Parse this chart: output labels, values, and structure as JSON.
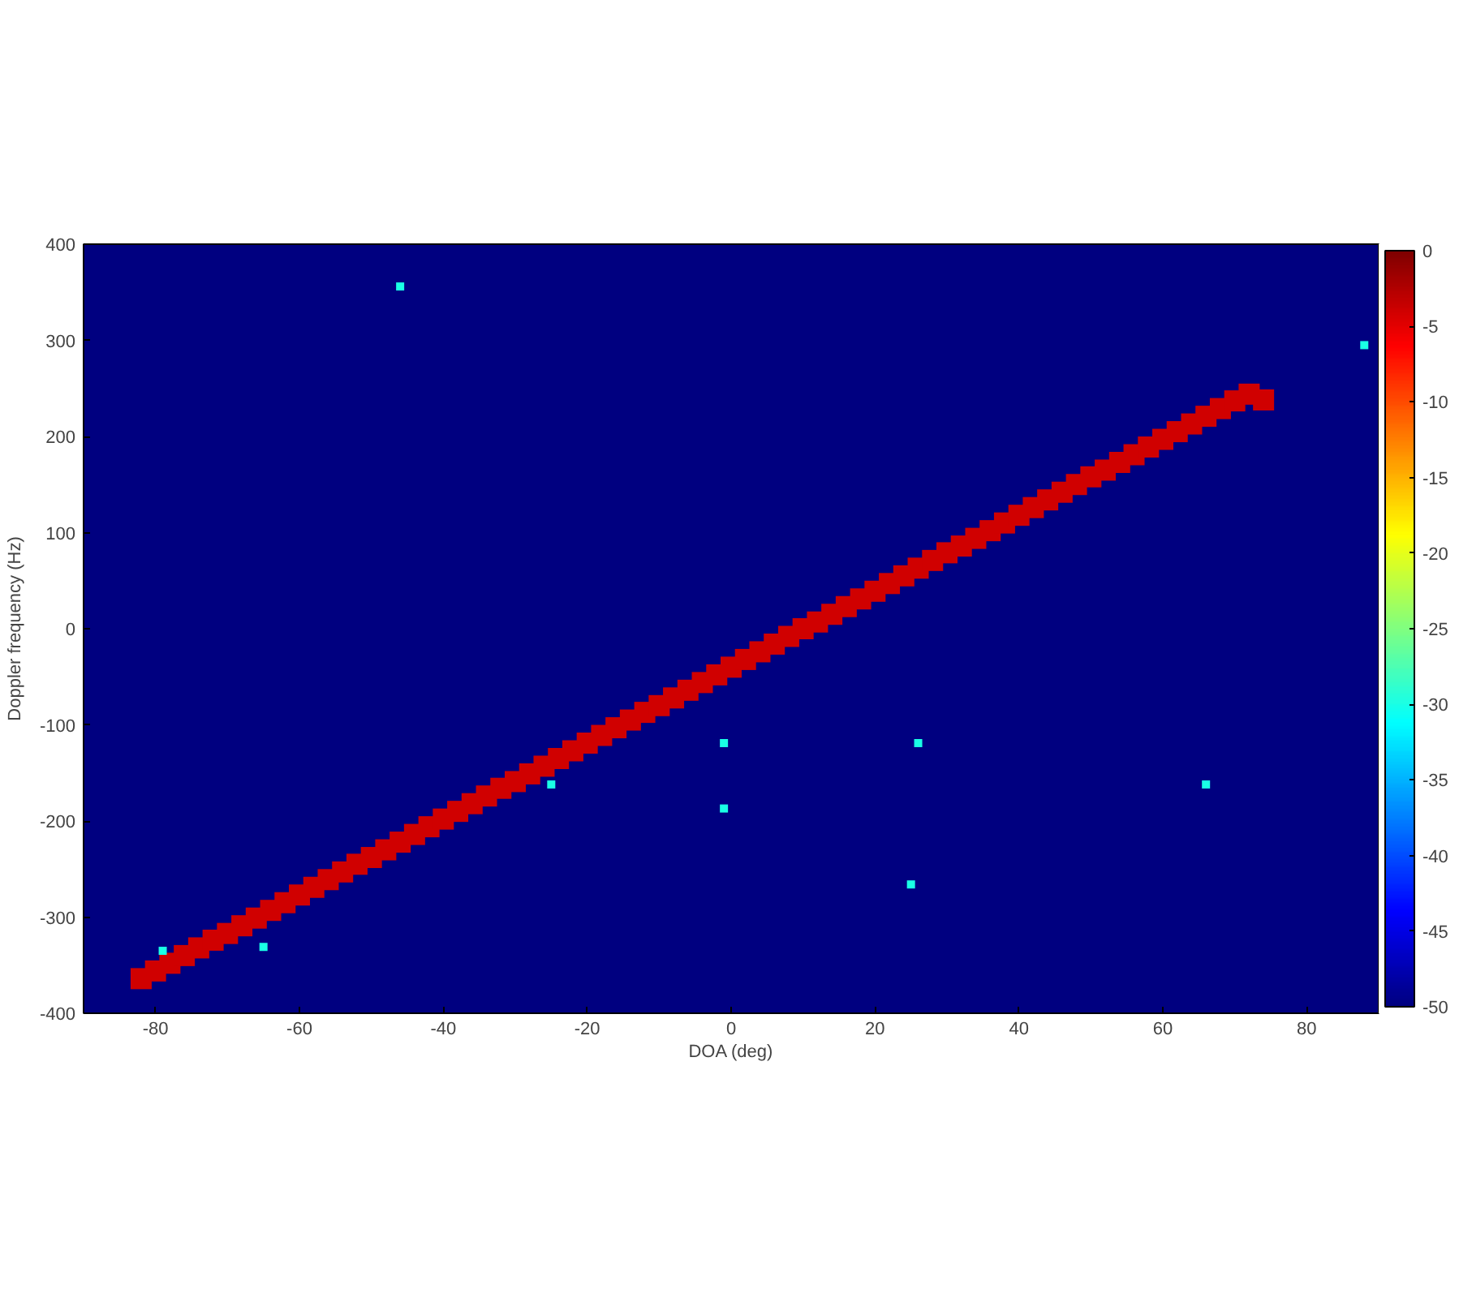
{
  "chart_data": {
    "type": "scatter",
    "xlabel": "DOA (deg)",
    "ylabel": "Doppler frequency (Hz)",
    "xlim": [
      -90,
      90
    ],
    "xticks": [
      -80,
      -60,
      -40,
      -20,
      0,
      20,
      40,
      60,
      80
    ],
    "ylim": [
      -400,
      400
    ],
    "yticks": [
      -400,
      -300,
      -200,
      -100,
      0,
      100,
      200,
      300,
      400
    ],
    "clim": [
      -50,
      0
    ],
    "cticks": [
      -50,
      -45,
      -40,
      -35,
      -30,
      -25,
      -20,
      -15,
      -10,
      -5,
      0
    ],
    "marker": "square",
    "series": [
      {
        "x": [
          -82,
          -80,
          -78,
          -76,
          -74,
          -72,
          -70,
          -68,
          -66,
          -64,
          -62,
          -60,
          -58,
          -56,
          -54,
          -52,
          -50,
          -48,
          -46,
          -44,
          -42,
          -40,
          -38,
          -36,
          -34,
          -32,
          -30,
          -28,
          -26,
          -24,
          -22,
          -20,
          -18,
          -16,
          -14,
          -12,
          -10,
          -8,
          -6,
          -4,
          -2,
          0,
          2,
          4,
          6,
          8,
          10,
          12,
          14,
          16,
          18,
          20,
          22,
          24,
          26,
          28,
          30,
          32,
          34,
          36,
          38,
          40,
          42,
          44,
          46,
          48,
          50,
          52,
          54,
          56,
          58,
          60,
          62,
          64,
          66,
          68,
          70,
          72,
          74
        ],
        "values": [
          -364,
          -356,
          -348,
          -340,
          -332,
          -324,
          -317,
          -309,
          -301,
          -293,
          -285,
          -277,
          -269,
          -261,
          -253,
          -245,
          -238,
          -230,
          -222,
          -214,
          -206,
          -198,
          -190,
          -182,
          -174,
          -166,
          -159,
          -151,
          -143,
          -135,
          -127,
          -119,
          -111,
          -103,
          -95,
          -87,
          -80,
          -72,
          -64,
          -56,
          -48,
          -40,
          -32,
          -24,
          -16,
          -8,
          0,
          7,
          15,
          23,
          31,
          39,
          47,
          55,
          63,
          71,
          79,
          86,
          94,
          102,
          110,
          118,
          126,
          134,
          142,
          150,
          158,
          165,
          173,
          181,
          189,
          197,
          205,
          213,
          221,
          229,
          237,
          244,
          238
        ],
        "cvalues": [
          -4,
          -4,
          -4,
          -4,
          -4,
          -4,
          -4,
          -4,
          -4,
          -4,
          -4,
          -4,
          -4,
          -4,
          -4,
          -4,
          -4,
          -4,
          -4,
          -4,
          -4,
          -4,
          -4,
          -4,
          -4,
          -4,
          -4,
          -4,
          -4,
          -4,
          -4,
          -4,
          -4,
          -4,
          -4,
          -4,
          -4,
          -4,
          -4,
          -4,
          -4,
          -4,
          -4,
          -4,
          -4,
          -4,
          -4,
          -4,
          -4,
          -4,
          -4,
          -4,
          -4,
          -4,
          -4,
          -4,
          -4,
          -4,
          -4,
          -4,
          -4,
          -4,
          -4,
          -4,
          -4,
          -4,
          -4,
          -4,
          -4,
          -4,
          -4,
          -4,
          -4,
          -4,
          -4,
          -4,
          -4,
          -4,
          -4
        ]
      },
      {
        "x": [
          88,
          -46,
          -1,
          -1,
          26,
          -25,
          66,
          25,
          -79,
          -65
        ],
        "values": [
          295,
          356,
          -119,
          -187,
          -119,
          -162,
          -162,
          -266,
          -335,
          -331
        ],
        "cvalues": [
          -30,
          -30,
          -30,
          -30,
          -30,
          -30,
          -30,
          -30,
          -30,
          -30
        ]
      }
    ]
  }
}
